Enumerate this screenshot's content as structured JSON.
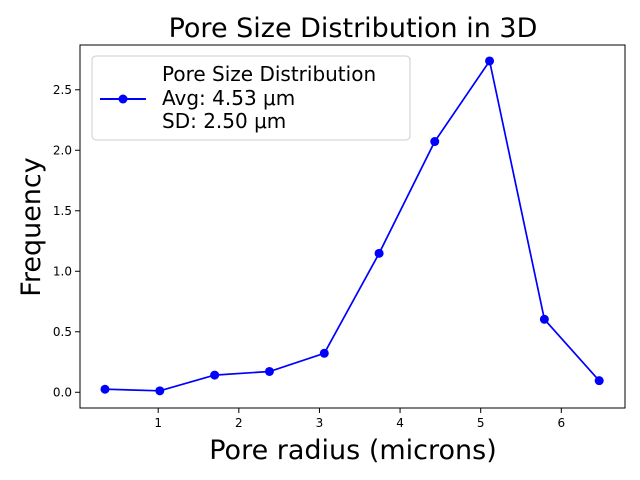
{
  "chart_data": {
    "type": "line",
    "title": "Pore Size Distribution in 3D",
    "xlabel": "Pore radius (microns)",
    "ylabel": "Frequency",
    "xlim": [
      0.03,
      6.79
    ],
    "ylim": [
      -0.13,
      2.87
    ],
    "xticks": [
      1,
      2,
      3,
      4,
      5,
      6
    ],
    "yticks": [
      0.0,
      0.5,
      1.0,
      1.5,
      2.0,
      2.5
    ],
    "xtick_labels": [
      "1",
      "2",
      "3",
      "4",
      "5",
      "6"
    ],
    "ytick_labels": [
      "0.0",
      "0.5",
      "1.0",
      "1.5",
      "2.0",
      "2.5"
    ],
    "grid": false,
    "legend": {
      "location": "upper-left",
      "entries": [
        "Pore Size Distribution",
        "Avg: 4.53 μm",
        "SD: 2.50 μm"
      ]
    },
    "series": [
      {
        "name": "Pore Size Distribution",
        "color": "#0000ff",
        "marker": "circle",
        "x": [
          0.34,
          1.02,
          1.7,
          2.38,
          3.06,
          3.74,
          4.43,
          5.11,
          5.79,
          6.47
        ],
        "y": [
          0.025,
          0.012,
          0.142,
          0.172,
          0.322,
          1.148,
          2.072,
          2.738,
          0.603,
          0.096
        ]
      }
    ]
  }
}
